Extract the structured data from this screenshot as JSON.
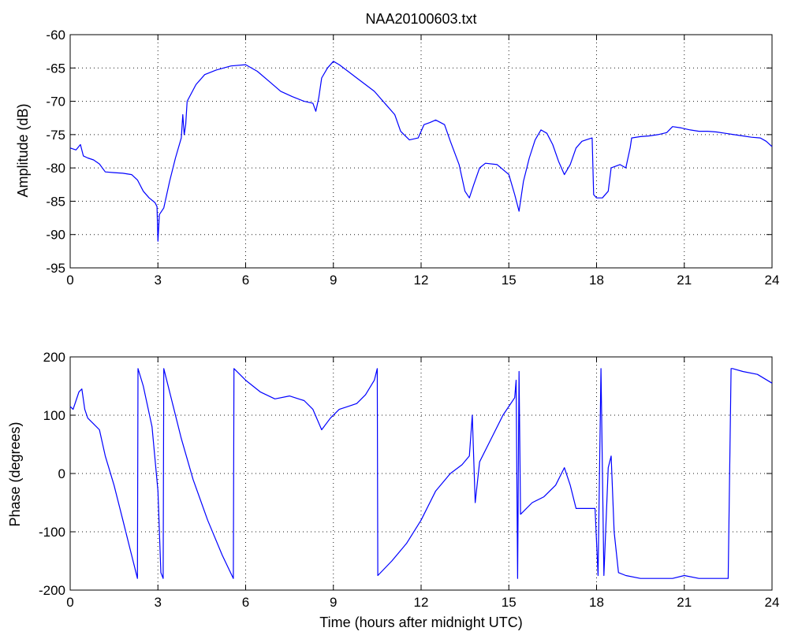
{
  "chart_data": [
    {
      "type": "line",
      "title": "NAA20100603.txt",
      "xlabel": "",
      "ylabel": "Amplitude (dB)",
      "xlim": [
        0,
        24
      ],
      "ylim": [
        -95,
        -60
      ],
      "xticks": [
        0,
        3,
        6,
        9,
        12,
        15,
        18,
        21,
        24
      ],
      "yticks": [
        -60,
        -65,
        -70,
        -75,
        -80,
        -85,
        -90,
        -95
      ],
      "grid": true,
      "series": [
        {
          "color": "#0000ff",
          "x": [
            0,
            0.2,
            0.35,
            0.45,
            0.6,
            0.8,
            1.0,
            1.2,
            1.5,
            1.8,
            2.1,
            2.3,
            2.5,
            2.7,
            2.9,
            2.97,
            3.0,
            3.05,
            3.2,
            3.4,
            3.6,
            3.8,
            3.85,
            3.9,
            3.95,
            4.0,
            4.3,
            4.6,
            5.0,
            5.5,
            6.0,
            6.4,
            6.8,
            7.2,
            7.6,
            8.0,
            8.3,
            8.4,
            8.5,
            8.6,
            8.8,
            9.0,
            9.2,
            9.5,
            9.8,
            10.1,
            10.4,
            10.8,
            11.1,
            11.3,
            11.6,
            11.9,
            12.1,
            12.3,
            12.5,
            12.8,
            13.0,
            13.3,
            13.5,
            13.65,
            13.8,
            14.0,
            14.2,
            14.6,
            15.0,
            15.2,
            15.35,
            15.5,
            15.7,
            15.9,
            16.1,
            16.3,
            16.5,
            16.7,
            16.9,
            17.1,
            17.3,
            17.5,
            17.7,
            17.85,
            17.9,
            18.0,
            18.2,
            18.4,
            18.5,
            18.8,
            19.0,
            19.15,
            19.2,
            19.5,
            19.8,
            20.1,
            20.4,
            20.6,
            20.9,
            21.2,
            21.5,
            21.8,
            22.1,
            22.4,
            22.7,
            23.0,
            23.3,
            23.6,
            23.8,
            24.0
          ],
          "values": [
            -77.0,
            -77.3,
            -76.5,
            -78.2,
            -78.5,
            -78.8,
            -79.4,
            -80.6,
            -80.7,
            -80.8,
            -81.0,
            -81.8,
            -83.5,
            -84.5,
            -85.2,
            -85.8,
            -91.0,
            -87.0,
            -86.0,
            -82.0,
            -78.5,
            -75.5,
            -72.0,
            -75.0,
            -73.5,
            -70.0,
            -67.5,
            -66.0,
            -65.3,
            -64.7,
            -64.5,
            -65.5,
            -67.0,
            -68.5,
            -69.3,
            -70.0,
            -70.3,
            -71.5,
            -69.5,
            -66.5,
            -65.0,
            -64.0,
            -64.5,
            -65.5,
            -66.5,
            -67.5,
            -68.5,
            -70.5,
            -72.0,
            -74.5,
            -75.8,
            -75.5,
            -73.5,
            -73.2,
            -72.8,
            -73.5,
            -76.0,
            -79.5,
            -83.5,
            -84.5,
            -82.5,
            -80.0,
            -79.3,
            -79.5,
            -81.0,
            -84.0,
            -86.5,
            -82.0,
            -78.5,
            -75.8,
            -74.3,
            -74.8,
            -76.5,
            -79.0,
            -81.0,
            -79.5,
            -77.0,
            -76.0,
            -75.7,
            -75.5,
            -84.0,
            -84.5,
            -84.5,
            -83.5,
            -80.0,
            -79.5,
            -80.0,
            -77.0,
            -75.5,
            -75.3,
            -75.2,
            -75.0,
            -74.7,
            -73.8,
            -74.0,
            -74.3,
            -74.5,
            -74.5,
            -74.6,
            -74.8,
            -75.0,
            -75.2,
            -75.4,
            -75.5,
            -76.0,
            -76.8
          ]
        }
      ]
    },
    {
      "type": "line",
      "title": "",
      "xlabel": "Time (hours after midnight UTC)",
      "ylabel": "Phase (degrees)",
      "xlim": [
        0,
        24
      ],
      "ylim": [
        -200,
        200
      ],
      "xticks": [
        0,
        3,
        6,
        9,
        12,
        15,
        18,
        21,
        24
      ],
      "yticks": [
        200,
        100,
        0,
        -100,
        -200
      ],
      "grid": true,
      "series": [
        {
          "color": "#0000ff",
          "x": [
            0,
            0.1,
            0.2,
            0.3,
            0.4,
            0.5,
            0.6,
            0.8,
            1.0,
            1.2,
            1.5,
            1.8,
            2.1,
            2.3,
            2.32,
            2.5,
            2.8,
            3.0,
            3.1,
            3.18,
            3.2,
            3.5,
            3.8,
            4.2,
            4.7,
            5.2,
            5.58,
            5.6,
            6.0,
            6.5,
            7.0,
            7.5,
            8.0,
            8.3,
            8.6,
            8.9,
            9.2,
            9.5,
            9.8,
            10.1,
            10.4,
            10.5,
            10.52,
            11.0,
            11.5,
            12.0,
            12.5,
            13.0,
            13.4,
            13.65,
            13.75,
            13.85,
            14.0,
            14.4,
            14.8,
            15.2,
            15.25,
            15.3,
            15.35,
            15.4,
            15.8,
            16.2,
            16.6,
            16.9,
            17.1,
            17.3,
            17.6,
            17.95,
            18.05,
            18.15,
            18.25,
            18.4,
            18.5,
            18.6,
            18.75,
            19.0,
            19.5,
            20.0,
            20.3,
            20.6,
            21.0,
            21.5,
            22.0,
            22.5,
            22.6,
            22.65,
            23.0,
            23.5,
            24.0
          ],
          "values": [
            115,
            110,
            125,
            140,
            145,
            110,
            95,
            85,
            75,
            30,
            -20,
            -80,
            -140,
            -180,
            180,
            150,
            80,
            -30,
            -170,
            -180,
            180,
            120,
            60,
            -10,
            -80,
            -140,
            -180,
            180,
            160,
            140,
            128,
            133,
            125,
            110,
            75,
            95,
            110,
            115,
            120,
            135,
            160,
            180,
            -175,
            -150,
            -120,
            -80,
            -30,
            0,
            15,
            30,
            100,
            -50,
            20,
            60,
            100,
            130,
            160,
            -180,
            175,
            -70,
            -50,
            -40,
            -20,
            10,
            -20,
            -60,
            -60,
            -60,
            -175,
            180,
            -175,
            10,
            30,
            -100,
            -170,
            -175,
            -180,
            -180,
            -180,
            -180,
            -175,
            -180,
            -180,
            -180,
            180,
            180,
            175,
            170,
            155
          ]
        }
      ]
    }
  ]
}
